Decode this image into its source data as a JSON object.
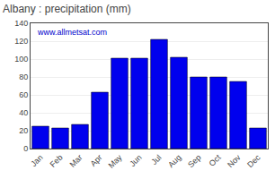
{
  "chart_data": {
    "type": "bar",
    "title": "Albany : precipitation (mm)",
    "categories": [
      "Jan",
      "Feb",
      "Mar",
      "Apr",
      "May",
      "Jun",
      "Jul",
      "Aug",
      "Sep",
      "Oct",
      "Nov",
      "Dec"
    ],
    "values": [
      25,
      23,
      27,
      63,
      101,
      101,
      122,
      102,
      80,
      80,
      75,
      23
    ],
    "color": "#0000ee",
    "ylim": [
      0,
      140
    ],
    "yticks": [
      0,
      20,
      40,
      60,
      80,
      100,
      120,
      140
    ],
    "grid": true,
    "annotations": [
      "www.allmetsat.com"
    ]
  }
}
